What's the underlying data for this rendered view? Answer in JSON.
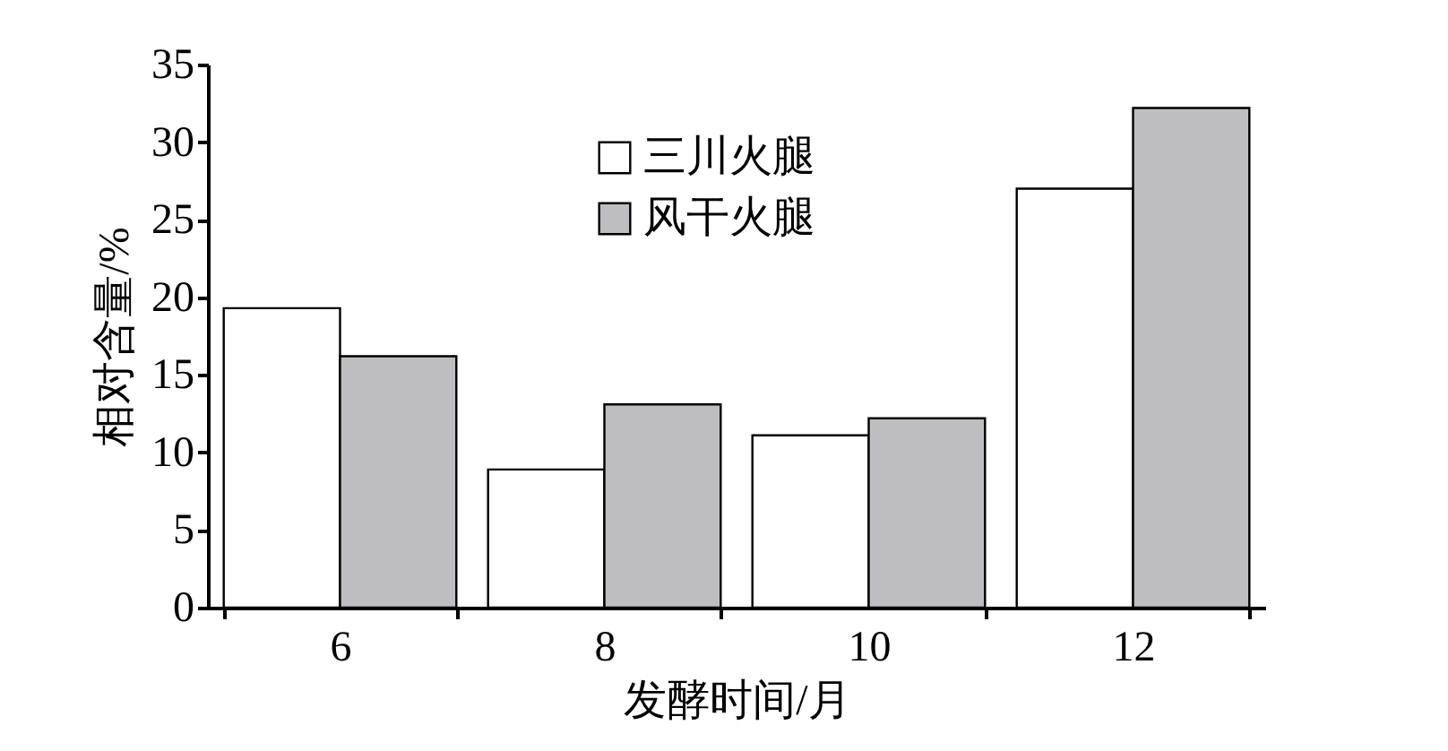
{
  "chart_data": {
    "type": "bar",
    "xlabel": "发酵时间/月",
    "ylabel": "相对含量/%",
    "categories": [
      "6",
      "8",
      "10",
      "12"
    ],
    "series": [
      {
        "name": "三川火腿",
        "color": "#ffffff",
        "values": [
          19.3,
          8.9,
          11.1,
          27.0
        ]
      },
      {
        "name": "风干火腿",
        "color": "#bebec0",
        "values": [
          16.2,
          13.1,
          12.2,
          32.2
        ]
      }
    ],
    "ylim": [
      0,
      35
    ],
    "yticks": [
      0,
      5,
      10,
      15,
      20,
      25,
      30,
      35
    ],
    "grid": false,
    "legend": "top"
  }
}
